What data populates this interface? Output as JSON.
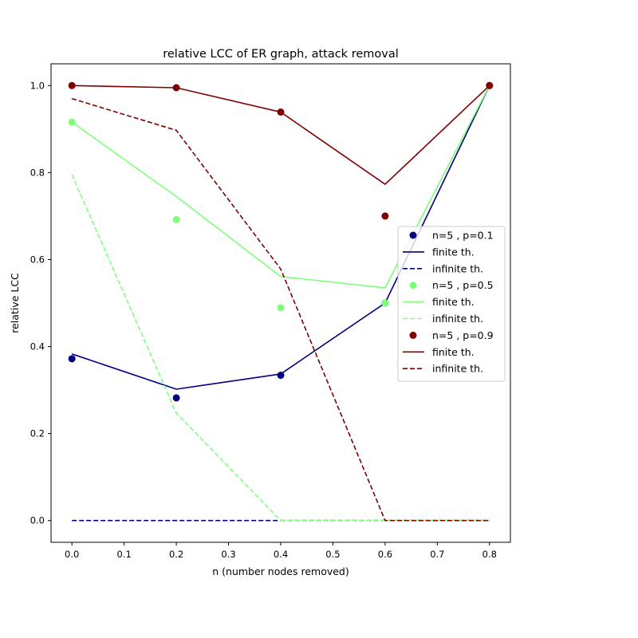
{
  "chart_data": {
    "type": "line",
    "title": "relative LCC of ER graph, attack removal",
    "xlabel": "n (number nodes removed)",
    "ylabel": "relative LCC",
    "xlim": [
      -0.04,
      0.84
    ],
    "ylim": [
      -0.05,
      1.05
    ],
    "x_ticks": [
      "0.0",
      "0.1",
      "0.2",
      "0.3",
      "0.4",
      "0.5",
      "0.6",
      "0.7",
      "0.8"
    ],
    "y_ticks": [
      "0.0",
      "0.2",
      "0.4",
      "0.6",
      "0.8",
      "1.0"
    ],
    "grid": false,
    "legend_position": "center-right",
    "x": [
      0.0,
      0.2,
      0.4,
      0.6,
      0.8
    ],
    "series": [
      {
        "name": "n=5 , p=0.1",
        "kind": "scatter",
        "color": "#000080",
        "values": [
          0.372,
          0.282,
          0.334,
          0.5,
          1.0
        ]
      },
      {
        "name": "finite th.",
        "kind": "line",
        "style": "solid",
        "color": "#000080",
        "values": [
          0.383,
          0.302,
          0.337,
          0.5,
          1.0
        ]
      },
      {
        "name": "infinite th.",
        "kind": "line",
        "style": "dashed",
        "color": "#000080",
        "values": [
          0.0,
          0.0,
          0.0,
          0.0,
          0.0
        ]
      },
      {
        "name": "n=5 , p=0.5",
        "kind": "scatter",
        "color": "#7dff7a",
        "values": [
          0.916,
          0.692,
          0.489,
          0.5,
          1.0
        ]
      },
      {
        "name": "finite th.",
        "kind": "line",
        "style": "solid",
        "color": "#7dff7a",
        "values": [
          0.916,
          0.745,
          0.561,
          0.535,
          1.0
        ]
      },
      {
        "name": "infinite th.",
        "kind": "line",
        "style": "dashed",
        "color": "#7dff7a",
        "values": [
          0.795,
          0.247,
          0.0,
          0.0,
          0.0
        ]
      },
      {
        "name": "n=5 , p=0.9",
        "kind": "scatter",
        "color": "#800000",
        "values": [
          1.0,
          0.995,
          0.939,
          0.7,
          1.0
        ]
      },
      {
        "name": "finite th.",
        "kind": "line",
        "style": "solid",
        "color": "#800000",
        "values": [
          1.0,
          0.995,
          0.939,
          0.773,
          1.0
        ]
      },
      {
        "name": "infinite th.",
        "kind": "line",
        "style": "dashed",
        "color": "#800000",
        "values": [
          0.97,
          0.897,
          0.578,
          0.0,
          0.0
        ]
      }
    ]
  }
}
